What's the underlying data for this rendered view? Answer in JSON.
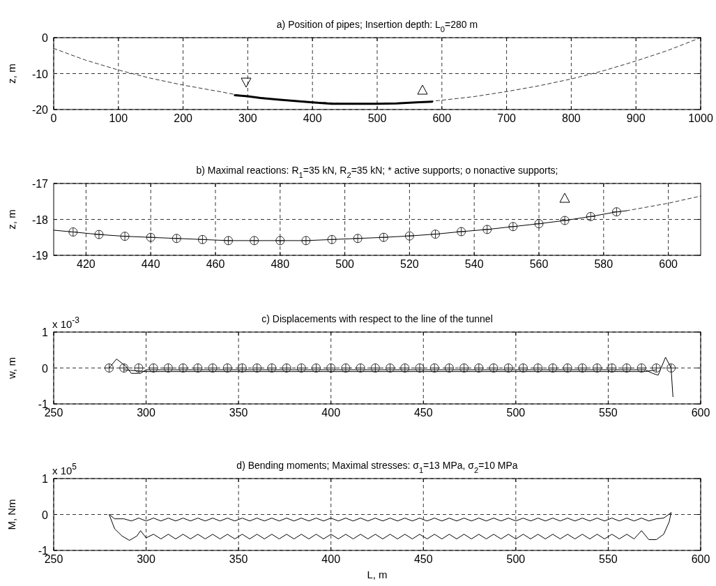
{
  "chart_data": [
    {
      "type": "line",
      "title": "a) Position of pipes; Insertion depth: L$_{0}$=280 m",
      "ylabel": "z, m",
      "xlim": [
        0,
        1000
      ],
      "xticks": [
        0,
        100,
        200,
        300,
        400,
        500,
        600,
        700,
        800,
        900,
        1000
      ],
      "ylim": [
        -20,
        0
      ],
      "yticks": [
        -20,
        -10,
        0
      ],
      "grid": true,
      "series": [
        {
          "line_style": "dashed",
          "color": "#000000",
          "x": [
            0,
            50,
            100,
            150,
            200,
            250,
            280,
            300,
            350,
            400,
            450,
            500,
            550,
            585,
            600,
            650,
            700,
            750,
            800,
            850,
            900,
            950,
            1000
          ],
          "values": [
            -3,
            -6.3,
            -9,
            -11.3,
            -13.2,
            -14.8,
            -15.8,
            -16.3,
            -17.2,
            -17.9,
            -18.3,
            -18.4,
            -18.1,
            -17.7,
            -17.4,
            -16.4,
            -15,
            -13.4,
            -11.5,
            -9.2,
            -6.5,
            -3.5,
            0
          ]
        },
        {
          "line_style": "solid",
          "color": "#000000",
          "x": [
            280,
            300,
            320,
            350,
            380,
            400,
            430,
            460,
            500,
            530,
            560,
            585
          ],
          "values": [
            -16,
            -16.3,
            -16.8,
            -17.3,
            -17.7,
            -18,
            -18.4,
            -18.4,
            -18.4,
            -18.3,
            -18,
            -17.8
          ]
        }
      ]
    },
    {
      "type": "line",
      "title": "b) Maximal reactions: R$_{1}$=35 kN,    R$_{2}$=35 kN;     * active supports;      o nonactive supports;",
      "ylabel": "z, m",
      "xlim": [
        410,
        610
      ],
      "xticks": [
        420,
        440,
        460,
        480,
        500,
        520,
        540,
        560,
        580,
        600
      ],
      "ylim": [
        -19,
        -17
      ],
      "yticks": [
        -19,
        -18,
        -17
      ],
      "grid": true,
      "series": [
        {
          "line_style": "solid",
          "color": "#000000",
          "x": [
            410,
            416,
            424,
            432,
            440,
            448,
            456,
            464,
            472,
            480,
            488,
            496,
            504,
            512,
            520,
            528,
            536,
            544,
            552,
            560,
            568,
            576,
            584,
            587
          ],
          "values": [
            -18.3,
            -18.35,
            -18.42,
            -18.47,
            -18.5,
            -18.53,
            -18.56,
            -18.59,
            -18.59,
            -18.59,
            -18.59,
            -18.56,
            -18.53,
            -18.5,
            -18.46,
            -18.41,
            -18.34,
            -18.28,
            -18.2,
            -18.12,
            -18.03,
            -17.92,
            -17.79,
            -17.76
          ]
        },
        {
          "type": "scatter",
          "marker": "cross",
          "color": "#1a1a1a",
          "x": [
            416,
            424,
            432,
            440,
            448,
            456,
            464,
            472,
            480,
            488,
            496,
            504,
            512,
            520,
            528,
            536,
            544,
            552,
            560,
            568,
            576,
            584
          ],
          "values": [
            -18.35,
            -18.42,
            -18.47,
            -18.5,
            -18.53,
            -18.56,
            -18.59,
            -18.59,
            -18.59,
            -18.59,
            -18.56,
            -18.53,
            -18.5,
            -18.46,
            -18.41,
            -18.34,
            -18.28,
            -18.2,
            -18.12,
            -18.03,
            -17.92,
            -17.79
          ]
        },
        {
          "line_style": "dashed",
          "color": "#000000",
          "x": [
            587,
            600,
            610
          ],
          "values": [
            -17.76,
            -17.55,
            -17.35
          ]
        }
      ]
    },
    {
      "type": "line",
      "title": "c) Displacements with respect to the line of the tunnel",
      "ylabel": "w, m",
      "xlim": [
        250,
        600
      ],
      "xticks": [
        250,
        300,
        350,
        400,
        450,
        500,
        550,
        600
      ],
      "ylim": [
        -1,
        1
      ],
      "yticks": [
        -1,
        0,
        1
      ],
      "grid": true,
      "annotations": [
        "x 10$^{-3}$"
      ],
      "series": [
        {
          "line_style": "solid",
          "color": "#000000",
          "x": [
            280,
            284,
            289,
            292,
            297,
            300,
            570,
            574,
            577,
            581,
            584,
            585
          ],
          "values": [
            0,
            0.25,
            0.05,
            -0.15,
            -0.15,
            -0.05,
            -0.05,
            -0.15,
            -0.2,
            0.3,
            0,
            -0.8
          ]
        },
        {
          "line_style": "solid",
          "color": "#000000",
          "x": [
            288,
            300,
            570,
            576
          ],
          "values": [
            -0.05,
            -0.1,
            -0.1,
            -0.05
          ]
        },
        {
          "type": "scatter",
          "marker": "cross",
          "color": "#1a1a1a",
          "x": [
            280,
            288,
            296,
            304,
            312,
            320,
            328,
            336,
            344,
            352,
            360,
            368,
            376,
            384,
            392,
            400,
            408,
            416,
            424,
            432,
            440,
            448,
            456,
            464,
            472,
            480,
            488,
            496,
            504,
            512,
            520,
            528,
            536,
            544,
            552,
            560,
            568,
            576,
            584
          ],
          "values": [
            0,
            0,
            0,
            0,
            0,
            0,
            0,
            0,
            0,
            0,
            0,
            0,
            0,
            0,
            0,
            0,
            0,
            0,
            0,
            0,
            0,
            0,
            0,
            0,
            0,
            0,
            0,
            0,
            0,
            0,
            0,
            0,
            0,
            0,
            0,
            0,
            0,
            0,
            0
          ]
        }
      ]
    },
    {
      "type": "line",
      "title": "d) Bending moments;       Maximal stresses: σ$_{1}$=13 MPa,    σ$_{2}$=10 MPa",
      "xlabel": "L, m",
      "ylabel": "M, Nm",
      "xlim": [
        250,
        600
      ],
      "xticks": [
        250,
        300,
        350,
        400,
        450,
        500,
        550,
        600
      ],
      "ylim": [
        -1,
        1
      ],
      "yticks": [
        -1,
        0,
        1
      ],
      "grid": true,
      "annotations": [
        "x 10$^{5}$"
      ],
      "series": [
        {
          "line_style": "solid",
          "color": "#000000",
          "x": [
            280,
            283,
            288,
            292,
            296,
            300,
            304,
            308,
            312,
            316,
            320,
            324,
            328,
            332,
            336,
            340,
            344,
            348,
            352,
            356,
            360,
            364,
            368,
            372,
            376,
            380,
            384,
            388,
            392,
            396,
            400,
            404,
            408,
            412,
            416,
            420,
            424,
            428,
            432,
            436,
            440,
            444,
            448,
            452,
            456,
            460,
            464,
            468,
            472,
            476,
            480,
            484,
            488,
            492,
            496,
            500,
            504,
            508,
            512,
            516,
            520,
            524,
            528,
            532,
            536,
            540,
            544,
            548,
            552,
            556,
            560,
            564,
            568,
            572,
            576,
            580,
            584
          ],
          "values": [
            0,
            -0.12,
            -0.12,
            -0.18,
            -0.1,
            -0.18,
            -0.1,
            -0.18,
            -0.1,
            -0.18,
            -0.1,
            -0.18,
            -0.1,
            -0.18,
            -0.1,
            -0.18,
            -0.1,
            -0.18,
            -0.1,
            -0.18,
            -0.1,
            -0.18,
            -0.1,
            -0.18,
            -0.1,
            -0.18,
            -0.1,
            -0.18,
            -0.1,
            -0.18,
            -0.1,
            -0.18,
            -0.1,
            -0.18,
            -0.1,
            -0.18,
            -0.1,
            -0.18,
            -0.1,
            -0.18,
            -0.1,
            -0.18,
            -0.1,
            -0.18,
            -0.1,
            -0.18,
            -0.1,
            -0.18,
            -0.1,
            -0.18,
            -0.1,
            -0.18,
            -0.1,
            -0.18,
            -0.1,
            -0.18,
            -0.1,
            -0.18,
            -0.1,
            -0.18,
            -0.1,
            -0.18,
            -0.1,
            -0.18,
            -0.1,
            -0.18,
            -0.1,
            -0.18,
            -0.1,
            -0.18,
            -0.1,
            -0.18,
            -0.1,
            -0.18,
            -0.12,
            -0.1,
            0.05
          ]
        },
        {
          "line_style": "solid",
          "color": "#000000",
          "x": [
            280,
            283,
            287,
            291,
            295,
            297,
            300,
            304,
            308,
            312,
            316,
            320,
            324,
            328,
            332,
            336,
            340,
            344,
            348,
            352,
            356,
            360,
            364,
            368,
            372,
            376,
            380,
            384,
            388,
            392,
            396,
            400,
            404,
            408,
            412,
            416,
            420,
            424,
            428,
            432,
            436,
            440,
            444,
            448,
            452,
            456,
            460,
            464,
            468,
            472,
            476,
            480,
            484,
            488,
            492,
            496,
            500,
            504,
            508,
            512,
            516,
            520,
            524,
            528,
            532,
            536,
            540,
            544,
            548,
            552,
            556,
            560,
            564,
            568,
            572,
            576,
            580,
            583,
            584
          ],
          "values": [
            0,
            -0.4,
            -0.6,
            -0.72,
            -0.6,
            -0.45,
            -0.65,
            -0.55,
            -0.68,
            -0.55,
            -0.68,
            -0.55,
            -0.68,
            -0.55,
            -0.68,
            -0.55,
            -0.68,
            -0.55,
            -0.68,
            -0.55,
            -0.68,
            -0.55,
            -0.68,
            -0.55,
            -0.68,
            -0.55,
            -0.68,
            -0.55,
            -0.68,
            -0.55,
            -0.68,
            -0.55,
            -0.68,
            -0.55,
            -0.68,
            -0.55,
            -0.68,
            -0.55,
            -0.68,
            -0.55,
            -0.68,
            -0.55,
            -0.68,
            -0.55,
            -0.68,
            -0.55,
            -0.68,
            -0.55,
            -0.68,
            -0.55,
            -0.68,
            -0.55,
            -0.68,
            -0.55,
            -0.68,
            -0.55,
            -0.68,
            -0.55,
            -0.68,
            -0.55,
            -0.68,
            -0.55,
            -0.68,
            -0.55,
            -0.68,
            -0.55,
            -0.68,
            -0.55,
            -0.68,
            -0.55,
            -0.68,
            -0.55,
            -0.68,
            -0.45,
            -0.7,
            -0.7,
            -0.55,
            -0.2,
            0.05
          ]
        }
      ]
    }
  ]
}
